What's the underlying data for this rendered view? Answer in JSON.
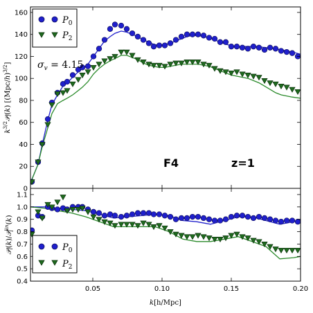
{
  "chart_data": [
    {
      "type": "line",
      "panel": "top",
      "ylabel": "k^{3/2} 𝒫_l(k) [(Mpc/h)^{3/2}]",
      "xlabel": "",
      "xlim": [
        0.005,
        0.2
      ],
      "ylim": [
        0,
        165
      ],
      "yticks": [
        "0",
        "20",
        "40",
        "60",
        "80",
        "100",
        "120",
        "140",
        "160"
      ],
      "ytick_values": [
        0,
        20,
        40,
        60,
        80,
        100,
        120,
        140,
        160
      ],
      "annotations": {
        "sigma": "σ_v = 4.15",
        "model": "F4",
        "redshift": "z=1"
      },
      "legend": {
        "position": "top-left",
        "entries": [
          "P_0",
          "P_2"
        ]
      },
      "series": [
        {
          "name": "P_0",
          "role": "points",
          "marker": "circle",
          "color": "#1f1fcc",
          "x": [
            0.006,
            0.0105,
            0.0135,
            0.0175,
            0.0205,
            0.0245,
            0.0285,
            0.0315,
            0.0355,
            0.0395,
            0.0425,
            0.0465,
            0.0505,
            0.0545,
            0.0585,
            0.0625,
            0.066,
            0.0705,
            0.0745,
            0.0785,
            0.0825,
            0.0865,
            0.0905,
            0.094,
            0.098,
            0.102,
            0.106,
            0.11,
            0.114,
            0.118,
            0.122,
            0.126,
            0.13,
            0.134,
            0.138,
            0.142,
            0.146,
            0.15,
            0.154,
            0.158,
            0.162,
            0.166,
            0.17,
            0.174,
            0.178,
            0.182,
            0.186,
            0.19,
            0.194,
            0.198
          ],
          "y": [
            6,
            24,
            41,
            63,
            78,
            87,
            95,
            97,
            103,
            108,
            110,
            111,
            120,
            127,
            135,
            145,
            149,
            148,
            145,
            141,
            138,
            135,
            132,
            129,
            130,
            130,
            132,
            135,
            138,
            140,
            140,
            140,
            139,
            137,
            136,
            133,
            133,
            129,
            129,
            128,
            127,
            129,
            128,
            126,
            128,
            127,
            125,
            124,
            123,
            120
          ]
        },
        {
          "name": "P_0 model",
          "role": "line",
          "color": "#1f1fcc",
          "x": [
            0.005,
            0.0105,
            0.0135,
            0.0175,
            0.0205,
            0.0245,
            0.0285,
            0.0315,
            0.0355,
            0.0395,
            0.0425,
            0.0465,
            0.0505,
            0.0545,
            0.0585,
            0.0625,
            0.066,
            0.0705,
            0.0745,
            0.0785,
            0.0825,
            0.0865,
            0.0905,
            0.094,
            0.098,
            0.102,
            0.106,
            0.11,
            0.114,
            0.118,
            0.122,
            0.126,
            0.13,
            0.134,
            0.138,
            0.142,
            0.146,
            0.15,
            0.154,
            0.158,
            0.162,
            0.166,
            0.17,
            0.174,
            0.178,
            0.182,
            0.186,
            0.19,
            0.194,
            0.2
          ],
          "y": [
            5,
            22,
            40,
            62,
            76,
            85,
            93,
            96,
            101,
            106,
            109,
            113,
            120,
            127,
            134,
            138,
            141,
            143,
            142,
            140,
            138,
            135,
            133,
            131,
            130,
            131,
            132,
            134,
            136,
            138,
            139,
            139,
            138,
            137,
            135,
            133,
            131,
            130,
            129,
            129,
            129,
            129,
            129,
            128,
            128,
            127,
            126,
            125,
            124,
            122
          ]
        },
        {
          "name": "P_2",
          "role": "points",
          "marker": "triangle-down",
          "color": "#1f6b1f",
          "x": [
            0.006,
            0.0105,
            0.0135,
            0.0175,
            0.0205,
            0.0245,
            0.0285,
            0.0315,
            0.0355,
            0.0395,
            0.0425,
            0.0465,
            0.0505,
            0.0545,
            0.0585,
            0.0625,
            0.066,
            0.0705,
            0.0745,
            0.0785,
            0.0825,
            0.0865,
            0.0905,
            0.094,
            0.098,
            0.102,
            0.106,
            0.11,
            0.114,
            0.118,
            0.122,
            0.126,
            0.13,
            0.134,
            0.138,
            0.142,
            0.146,
            0.15,
            0.154,
            0.158,
            0.162,
            0.166,
            0.17,
            0.174,
            0.178,
            0.182,
            0.186,
            0.19,
            0.194,
            0.198
          ],
          "y": [
            6,
            24,
            40,
            58,
            76,
            86,
            87,
            89,
            95,
            99,
            103,
            106,
            110,
            113,
            116,
            118,
            120,
            124,
            124,
            121,
            117,
            115,
            113,
            112,
            112,
            111,
            113,
            114,
            114,
            115,
            115,
            115,
            113,
            112,
            109,
            107,
            106,
            105,
            106,
            104,
            103,
            102,
            101,
            98,
            96,
            95,
            93,
            92,
            90,
            88
          ]
        },
        {
          "name": "P_2 model",
          "role": "line",
          "color": "#2a8a2a",
          "x": [
            0.005,
            0.0105,
            0.0135,
            0.0175,
            0.0205,
            0.0245,
            0.0285,
            0.0315,
            0.0355,
            0.0395,
            0.0425,
            0.0465,
            0.0505,
            0.0545,
            0.0585,
            0.0625,
            0.066,
            0.0705,
            0.0745,
            0.0785,
            0.0825,
            0.0865,
            0.0905,
            0.094,
            0.098,
            0.102,
            0.106,
            0.11,
            0.114,
            0.118,
            0.122,
            0.126,
            0.13,
            0.134,
            0.138,
            0.142,
            0.146,
            0.15,
            0.154,
            0.158,
            0.162,
            0.166,
            0.17,
            0.174,
            0.178,
            0.182,
            0.186,
            0.19,
            0.194,
            0.2
          ],
          "y": [
            5,
            22,
            38,
            55,
            68,
            77,
            80,
            82,
            85,
            89,
            92,
            97,
            104,
            109,
            113,
            116,
            118,
            121,
            121,
            119,
            117,
            114,
            112,
            111,
            110,
            110,
            111,
            112,
            113,
            113,
            113,
            113,
            112,
            111,
            109,
            107,
            105,
            103,
            102,
            101,
            100,
            98,
            96,
            93,
            90,
            87,
            85,
            84,
            83,
            82
          ]
        }
      ]
    },
    {
      "type": "line",
      "panel": "bottom",
      "ylabel": "𝒫_l(k) / 𝒫_l^{lin}(k)",
      "xlabel": "k[h/Mpc]",
      "xlim": [
        0.005,
        0.2
      ],
      "ylim": [
        0.4,
        1.15
      ],
      "xticks": [
        "0.05",
        "0.10",
        "0.15",
        "0.20"
      ],
      "xtick_values": [
        0.05,
        0.1,
        0.15,
        0.2
      ],
      "yticks": [
        "0.4",
        "0.5",
        "0.6",
        "0.7",
        "0.8",
        "0.9",
        "1.0",
        "1.1"
      ],
      "ytick_values": [
        0.4,
        0.5,
        0.6,
        0.7,
        0.8,
        0.9,
        1.0,
        1.1
      ],
      "legend": {
        "position": "lower-left",
        "entries": [
          "P_0",
          "P_2"
        ]
      },
      "series": [
        {
          "name": "P_0",
          "role": "points",
          "marker": "circle",
          "color": "#1f1fcc",
          "x": [
            0.006,
            0.0105,
            0.0135,
            0.0175,
            0.0205,
            0.0245,
            0.0285,
            0.0315,
            0.0355,
            0.0395,
            0.0425,
            0.0465,
            0.0505,
            0.0545,
            0.0585,
            0.0625,
            0.066,
            0.0705,
            0.0745,
            0.0785,
            0.0825,
            0.0865,
            0.0905,
            0.094,
            0.098,
            0.102,
            0.106,
            0.11,
            0.114,
            0.118,
            0.122,
            0.126,
            0.13,
            0.134,
            0.138,
            0.142,
            0.146,
            0.15,
            0.154,
            0.158,
            0.162,
            0.166,
            0.17,
            0.174,
            0.178,
            0.182,
            0.186,
            0.19,
            0.194,
            0.198
          ],
          "y": [
            0.81,
            0.93,
            0.92,
            1.0,
            0.99,
            0.98,
            0.99,
            0.98,
            1.0,
            1.0,
            1.0,
            0.98,
            0.96,
            0.95,
            0.93,
            0.94,
            0.93,
            0.92,
            0.93,
            0.94,
            0.95,
            0.95,
            0.95,
            0.94,
            0.94,
            0.93,
            0.92,
            0.9,
            0.91,
            0.91,
            0.92,
            0.92,
            0.91,
            0.9,
            0.89,
            0.89,
            0.9,
            0.92,
            0.93,
            0.93,
            0.92,
            0.91,
            0.92,
            0.91,
            0.9,
            0.89,
            0.88,
            0.89,
            0.89,
            0.88
          ]
        },
        {
          "name": "P_0 model",
          "role": "line",
          "color": "#1f1fcc",
          "x": [
            0.005,
            0.015,
            0.025,
            0.035,
            0.045,
            0.055,
            0.065,
            0.075,
            0.085,
            0.095,
            0.105,
            0.115,
            0.125,
            0.135,
            0.145,
            0.155,
            0.165,
            0.175,
            0.185,
            0.195,
            0.2
          ],
          "y": [
            1.0,
            1.0,
            0.99,
            0.98,
            0.97,
            0.94,
            0.91,
            0.92,
            0.93,
            0.94,
            0.93,
            0.89,
            0.88,
            0.86,
            0.89,
            0.92,
            0.92,
            0.89,
            0.86,
            0.88,
            0.9
          ]
        },
        {
          "name": "P_2",
          "role": "points",
          "marker": "triangle-down",
          "color": "#1f6b1f",
          "x": [
            0.006,
            0.0105,
            0.0135,
            0.0175,
            0.0205,
            0.0245,
            0.0285,
            0.0315,
            0.0355,
            0.0395,
            0.0425,
            0.0465,
            0.0505,
            0.0545,
            0.0585,
            0.0625,
            0.066,
            0.0705,
            0.0745,
            0.0785,
            0.0825,
            0.0865,
            0.0905,
            0.094,
            0.098,
            0.102,
            0.106,
            0.11,
            0.114,
            0.118,
            0.122,
            0.126,
            0.13,
            0.134,
            0.138,
            0.142,
            0.146,
            0.15,
            0.154,
            0.158,
            0.162,
            0.166,
            0.17,
            0.174,
            0.178,
            0.182,
            0.186,
            0.19,
            0.194,
            0.198
          ],
          "y": [
            0.78,
            0.96,
            0.91,
            1.02,
            1.0,
            1.04,
            1.08,
            0.97,
            0.98,
            0.98,
            0.99,
            0.96,
            0.92,
            0.9,
            0.88,
            0.87,
            0.85,
            0.86,
            0.86,
            0.86,
            0.85,
            0.87,
            0.86,
            0.84,
            0.85,
            0.83,
            0.8,
            0.78,
            0.77,
            0.76,
            0.76,
            0.77,
            0.76,
            0.75,
            0.74,
            0.74,
            0.75,
            0.77,
            0.78,
            0.76,
            0.75,
            0.73,
            0.72,
            0.7,
            0.68,
            0.66,
            0.65,
            0.65,
            0.65,
            0.65
          ]
        },
        {
          "name": "P_2 model",
          "role": "line",
          "color": "#2a8a2a",
          "x": [
            0.005,
            0.015,
            0.025,
            0.035,
            0.045,
            0.055,
            0.065,
            0.075,
            0.085,
            0.095,
            0.105,
            0.115,
            0.125,
            0.135,
            0.145,
            0.155,
            0.165,
            0.175,
            0.185,
            0.195,
            0.2
          ],
          "y": [
            1.0,
            0.99,
            0.97,
            0.95,
            0.92,
            0.88,
            0.84,
            0.84,
            0.84,
            0.84,
            0.8,
            0.74,
            0.72,
            0.72,
            0.74,
            0.76,
            0.72,
            0.68,
            0.58,
            0.59,
            0.6
          ]
        }
      ]
    }
  ],
  "legend_labels": {
    "p0": "P",
    "p0_sub": "0",
    "p2": "P",
    "p2_sub": "2"
  },
  "colors": {
    "p0": "#1f1fcc",
    "p2_points": "#1f6b1f",
    "p2_line": "#2a8a2a"
  }
}
